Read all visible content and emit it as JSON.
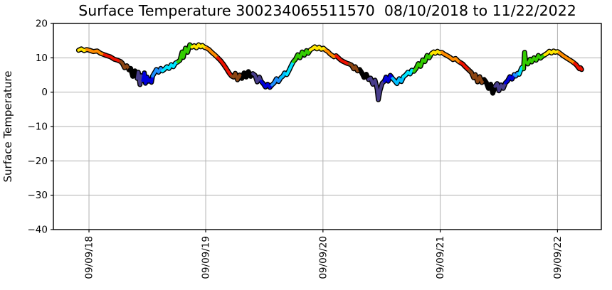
{
  "figure": {
    "title": "Surface Temperature 300234065511570  08/10/2018 to 11/22/2022",
    "ylabel": "Surface Temperature"
  },
  "style": {
    "background": "#ffffff",
    "grid_color": "#b0b0b0",
    "axis_color": "#000000",
    "outline_color": "#000000"
  },
  "chart_data": {
    "type": "line",
    "title": "Surface Temperature 300234065511570  08/10/2018 to 11/22/2022",
    "xlabel": "",
    "ylabel": "Surface Temperature",
    "ylim": [
      -40,
      20
    ],
    "grid": true,
    "legend": null,
    "ytick_values": [
      20,
      10,
      0,
      -10,
      -20,
      -30,
      -40
    ],
    "ytick_labels": [
      "20",
      "10",
      "0",
      "−10",
      "−20",
      "−30",
      "−40"
    ],
    "xticks": [
      {
        "label": "09/09/18",
        "pos": 65
      },
      {
        "label": "09/09/19",
        "pos": 278
      },
      {
        "label": "09/09/20",
        "pos": 492
      },
      {
        "label": "09/09/21",
        "pos": 706
      },
      {
        "label": "09/09/22",
        "pos": 920
      }
    ],
    "x_unit": "permille-of-axis",
    "palette": {
      "yellow": "#FFE600",
      "orange": "#FF8C00",
      "red": "#EE1100",
      "brown": "#8B4513",
      "black": "#000000",
      "slate": "#483D8B",
      "blue": "#0000DC",
      "dodger": "#1E90FF",
      "sky": "#00BFFF",
      "cyan": "#00E5FF",
      "green": "#33CC00"
    },
    "segments": [
      {
        "c": "yellow",
        "pts": [
          [
            46,
            12.2
          ],
          [
            51,
            12.6
          ],
          [
            56,
            12.1
          ],
          [
            61,
            12.4
          ]
        ]
      },
      {
        "c": "orange",
        "pts": [
          [
            66,
            12.2
          ],
          [
            73,
            11.8
          ],
          [
            80,
            12.0
          ],
          [
            86,
            11.3
          ],
          [
            93,
            10.9
          ]
        ]
      },
      {
        "c": "red",
        "pts": [
          [
            98,
            10.6
          ],
          [
            104,
            10.3
          ],
          [
            111,
            9.6
          ],
          [
            117,
            9.3
          ],
          [
            123,
            8.9
          ]
        ]
      },
      {
        "c": "brown",
        "pts": [
          [
            126,
            8.4
          ],
          [
            130,
            7.1
          ],
          [
            134,
            7.7
          ],
          [
            138,
            6.5
          ]
        ]
      },
      {
        "c": "black",
        "pts": [
          [
            141,
            6.9
          ],
          [
            145,
            4.6
          ],
          [
            149,
            6.2
          ],
          [
            153,
            4.0
          ]
        ]
      },
      {
        "c": "slate",
        "pts": [
          [
            155,
            5.8
          ],
          [
            158,
            2.2
          ],
          [
            160,
            4.8
          ],
          [
            163,
            3.4
          ]
        ]
      },
      {
        "c": "blue",
        "pts": [
          [
            166,
            5.6
          ],
          [
            168,
            2.6
          ],
          [
            171,
            4.4
          ],
          [
            173,
            3.2
          ],
          [
            176,
            3.6
          ],
          [
            179,
            2.9
          ],
          [
            181,
            4.7
          ]
        ]
      },
      {
        "c": "dodger",
        "pts": [
          [
            184,
            5.5
          ],
          [
            188,
            6.6
          ],
          [
            192,
            5.8
          ],
          [
            196,
            6.9
          ],
          [
            199,
            6.2
          ]
        ]
      },
      {
        "c": "cyan",
        "pts": [
          [
            203,
            6.7
          ],
          [
            207,
            7.4
          ],
          [
            211,
            6.9
          ],
          [
            215,
            8.0
          ],
          [
            219,
            7.4
          ],
          [
            223,
            8.5
          ],
          [
            227,
            8.8
          ]
        ]
      },
      {
        "c": "green",
        "pts": [
          [
            231,
            9.3
          ],
          [
            235,
            11.7
          ],
          [
            237,
            10.1
          ],
          [
            241,
            12.8
          ],
          [
            245,
            11.6
          ],
          [
            249,
            13.8
          ],
          [
            253,
            13.1
          ]
        ]
      },
      {
        "c": "yellow",
        "pts": [
          [
            257,
            13.5
          ],
          [
            261,
            12.9
          ],
          [
            265,
            13.8
          ],
          [
            269,
            13.2
          ],
          [
            272,
            13.6
          ],
          [
            276,
            13.0
          ],
          [
            279,
            12.9
          ]
        ]
      },
      {
        "c": "orange",
        "pts": [
          [
            284,
            12.4
          ],
          [
            289,
            11.6
          ],
          [
            295,
            10.8
          ],
          [
            300,
            10.0
          ]
        ]
      },
      {
        "c": "red",
        "pts": [
          [
            305,
            9.2
          ],
          [
            310,
            8.2
          ],
          [
            316,
            6.8
          ],
          [
            321,
            5.5
          ],
          [
            325,
            4.7
          ]
        ]
      },
      {
        "c": "brown",
        "pts": [
          [
            329,
            4.4
          ],
          [
            332,
            5.5
          ],
          [
            336,
            3.6
          ],
          [
            340,
            5.0
          ],
          [
            344,
            4.0
          ]
        ]
      },
      {
        "c": "black",
        "pts": [
          [
            348,
            5.6
          ],
          [
            352,
            4.4
          ],
          [
            356,
            6.0
          ],
          [
            360,
            4.6
          ],
          [
            364,
            5.4
          ]
        ]
      },
      {
        "c": "slate",
        "pts": [
          [
            368,
            4.9
          ],
          [
            372,
            3.0
          ],
          [
            376,
            4.4
          ],
          [
            379,
            3.2
          ]
        ]
      },
      {
        "c": "blue",
        "pts": [
          [
            383,
            2.5
          ],
          [
            387,
            1.5
          ],
          [
            391,
            2.3
          ],
          [
            395,
            1.4
          ],
          [
            399,
            2.1
          ]
        ]
      },
      {
        "c": "dodger",
        "pts": [
          [
            403,
            2.7
          ],
          [
            407,
            3.9
          ],
          [
            411,
            3.1
          ],
          [
            415,
            4.2
          ]
        ]
      },
      {
        "c": "sky",
        "pts": [
          [
            419,
            4.7
          ],
          [
            422,
            5.6
          ],
          [
            426,
            5.1
          ]
        ]
      },
      {
        "c": "cyan",
        "pts": [
          [
            430,
            6.3
          ],
          [
            434,
            7.7
          ],
          [
            438,
            8.9
          ]
        ]
      },
      {
        "c": "green",
        "pts": [
          [
            442,
            9.6
          ],
          [
            446,
            10.9
          ],
          [
            450,
            10.0
          ],
          [
            454,
            11.7
          ],
          [
            458,
            10.8
          ],
          [
            462,
            12.1
          ],
          [
            465,
            11.3
          ],
          [
            469,
            12.3
          ]
        ]
      },
      {
        "c": "yellow",
        "pts": [
          [
            473,
            12.7
          ],
          [
            477,
            13.2
          ],
          [
            481,
            12.6
          ],
          [
            485,
            13.1
          ],
          [
            489,
            12.5
          ],
          [
            493,
            12.8
          ],
          [
            497,
            12.2
          ]
        ]
      },
      {
        "c": "orange",
        "pts": [
          [
            501,
            11.8
          ],
          [
            505,
            11.1
          ],
          [
            508,
            10.8
          ],
          [
            512,
            10.3
          ],
          [
            516,
            10.6
          ]
        ]
      },
      {
        "c": "red",
        "pts": [
          [
            520,
            10.0
          ],
          [
            524,
            9.4
          ],
          [
            528,
            9.0
          ],
          [
            532,
            8.7
          ],
          [
            536,
            8.4
          ],
          [
            540,
            8.2
          ]
        ]
      },
      {
        "c": "brown",
        "pts": [
          [
            544,
            7.9
          ],
          [
            548,
            6.8
          ],
          [
            551,
            7.4
          ],
          [
            555,
            6.2
          ],
          [
            559,
            6.6
          ]
        ]
      },
      {
        "c": "black",
        "pts": [
          [
            563,
            5.6
          ],
          [
            567,
            4.3
          ],
          [
            571,
            5.2
          ],
          [
            575,
            3.7
          ]
        ]
      },
      {
        "c": "slate",
        "pts": [
          [
            579,
            4.1
          ],
          [
            583,
            2.3
          ],
          [
            587,
            3.5
          ],
          [
            591,
            0.8
          ],
          [
            593,
            -2.2
          ],
          [
            596,
            0.4
          ],
          [
            600,
            2.6
          ],
          [
            604,
            3.2
          ]
        ]
      },
      {
        "c": "blue",
        "pts": [
          [
            607,
            4.4
          ],
          [
            611,
            3.2
          ],
          [
            615,
            4.9
          ],
          [
            619,
            4.0
          ]
        ]
      },
      {
        "c": "sky",
        "pts": [
          [
            623,
            3.3
          ],
          [
            627,
            2.5
          ],
          [
            631,
            3.9
          ],
          [
            635,
            3.1
          ],
          [
            639,
            4.5
          ]
        ]
      },
      {
        "c": "cyan",
        "pts": [
          [
            643,
            5.0
          ],
          [
            647,
            5.8
          ],
          [
            651,
            5.3
          ],
          [
            654,
            6.4
          ],
          [
            658,
            6.1
          ]
        ]
      },
      {
        "c": "green",
        "pts": [
          [
            662,
            6.9
          ],
          [
            666,
            8.3
          ],
          [
            670,
            7.5
          ],
          [
            674,
            9.4
          ],
          [
            678,
            8.9
          ],
          [
            682,
            10.7
          ],
          [
            686,
            10.0
          ],
          [
            690,
            11.2
          ]
        ]
      },
      {
        "c": "yellow",
        "pts": [
          [
            694,
            11.7
          ],
          [
            697,
            11.3
          ],
          [
            701,
            11.9
          ],
          [
            705,
            11.4
          ],
          [
            709,
            11.6
          ]
        ]
      },
      {
        "c": "orange",
        "pts": [
          [
            713,
            11.1
          ],
          [
            718,
            10.7
          ],
          [
            724,
            10.1
          ],
          [
            729,
            9.5
          ],
          [
            734,
            9.8
          ],
          [
            739,
            9.0
          ],
          [
            743,
            8.6
          ]
        ]
      },
      {
        "c": "red",
        "pts": [
          [
            747,
            8.2
          ],
          [
            751,
            7.5
          ],
          [
            755,
            6.9
          ],
          [
            759,
            6.3
          ]
        ]
      },
      {
        "c": "brown",
        "pts": [
          [
            763,
            5.7
          ],
          [
            767,
            4.2
          ],
          [
            770,
            5.1
          ],
          [
            774,
            3.0
          ],
          [
            778,
            4.5
          ],
          [
            782,
            2.8
          ],
          [
            786,
            3.7
          ]
        ]
      },
      {
        "c": "black",
        "pts": [
          [
            790,
            2.8
          ],
          [
            794,
            1.1
          ],
          [
            798,
            2.3
          ],
          [
            802,
            -0.3
          ],
          [
            806,
            1.7
          ]
        ]
      },
      {
        "c": "slate",
        "pts": [
          [
            810,
            2.5
          ],
          [
            813,
            0.4
          ],
          [
            817,
            2.1
          ],
          [
            821,
            1.1
          ],
          [
            825,
            2.7
          ]
        ]
      },
      {
        "c": "blue",
        "pts": [
          [
            829,
            3.3
          ],
          [
            833,
            4.5
          ],
          [
            837,
            3.8
          ],
          [
            841,
            5.1
          ]
        ]
      },
      {
        "c": "dodger",
        "pts": [
          [
            844,
            4.7
          ],
          [
            847,
            5.5
          ],
          [
            850,
            5.2
          ]
        ]
      },
      {
        "c": "cyan",
        "pts": [
          [
            853,
            6.5
          ],
          [
            855,
            7.2
          ],
          [
            858,
            6.8
          ]
        ]
      },
      {
        "c": "green",
        "pts": [
          [
            860,
            11.6
          ],
          [
            862,
            8.8
          ],
          [
            866,
            8.2
          ],
          [
            870,
            9.6
          ],
          [
            873,
            8.8
          ],
          [
            877,
            10.0
          ],
          [
            881,
            9.3
          ],
          [
            885,
            10.7
          ],
          [
            889,
            9.9
          ],
          [
            893,
            10.5
          ],
          [
            897,
            10.9
          ]
        ]
      },
      {
        "c": "yellow",
        "pts": [
          [
            901,
            11.3
          ],
          [
            905,
            11.9
          ],
          [
            909,
            11.4
          ],
          [
            913,
            12.0
          ],
          [
            916,
            11.6
          ],
          [
            920,
            11.8
          ],
          [
            923,
            11.5
          ]
        ]
      },
      {
        "c": "orange",
        "pts": [
          [
            927,
            11.0
          ],
          [
            931,
            10.5
          ],
          [
            935,
            10.1
          ],
          [
            939,
            9.7
          ],
          [
            943,
            9.3
          ],
          [
            947,
            8.9
          ],
          [
            951,
            8.4
          ]
        ]
      },
      {
        "c": "red",
        "pts": [
          [
            954,
            8.0
          ],
          [
            957,
            7.4
          ],
          [
            960,
            6.8
          ],
          [
            962,
            7.1
          ],
          [
            964,
            6.6
          ]
        ]
      }
    ]
  }
}
